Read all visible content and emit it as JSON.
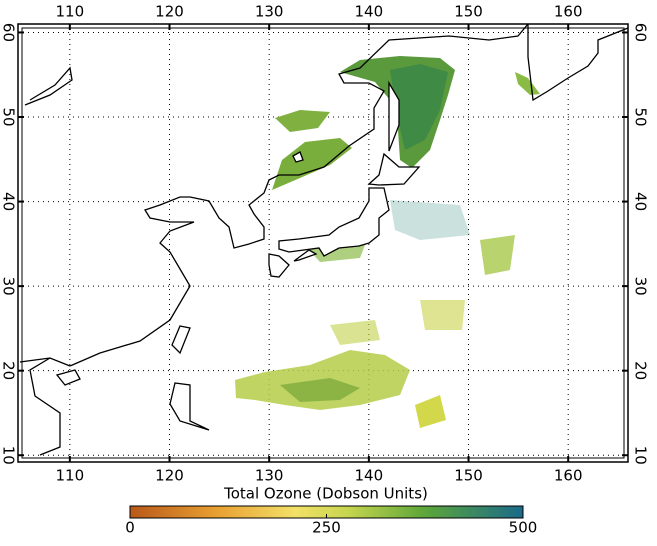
{
  "map": {
    "xlim": [
      104.8,
      166
    ],
    "ylim": [
      9.2,
      61
    ],
    "xticks": [
      110,
      120,
      130,
      140,
      150,
      160
    ],
    "yticks": [
      10,
      20,
      30,
      40,
      50,
      60
    ]
  },
  "colorbar": {
    "title": "Total Ozone (Dobson Units)",
    "lim": [
      0,
      500
    ],
    "ticks": [
      0,
      250,
      500
    ]
  }
}
